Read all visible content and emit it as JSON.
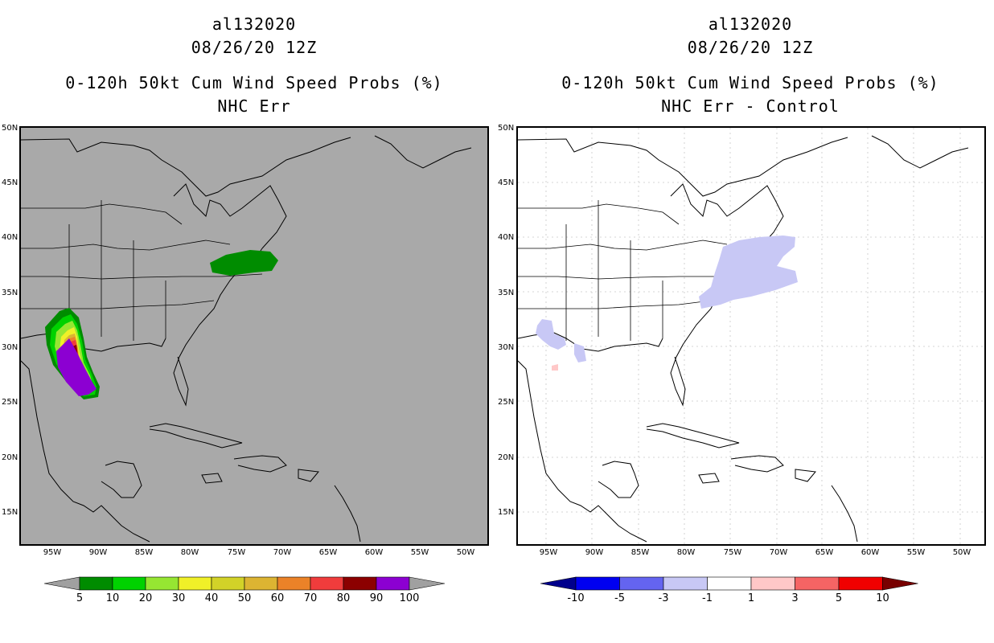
{
  "left_panel": {
    "title_line1": "al132020",
    "title_line2": "08/26/20 12Z",
    "title_line3": "0-120h 50kt Cum Wind Speed Probs (%)",
    "title_line4": "NHC Err",
    "background_color": "#a9a9a9",
    "colorbar": {
      "colors": [
        "#008c00",
        "#00d200",
        "#96e632",
        "#f0f028",
        "#d2d228",
        "#dcb432",
        "#eb8228",
        "#f03c3c",
        "#8c0000",
        "#8c00d2"
      ],
      "under_color": "#a0a0a0",
      "over_color": "#a0a0a0",
      "labels": [
        "5",
        "10",
        "20",
        "30",
        "40",
        "50",
        "60",
        "70",
        "80",
        "90",
        "100"
      ]
    }
  },
  "right_panel": {
    "title_line1": "al132020",
    "title_line2": "08/26/20 12Z",
    "title_line3": "0-120h 50kt Cum Wind Speed Probs (%)",
    "title_line4": "NHC Err - Control",
    "background_color": "#ffffff",
    "colorbar": {
      "colors": [
        "#0000f0",
        "#6464f0",
        "#c8c8f5",
        "#ffffff",
        "#ffc8c8",
        "#f56464",
        "#f00000"
      ],
      "under_color": "#00008c",
      "over_color": "#780000",
      "labels": [
        "-10",
        "-5",
        "-3",
        "-1",
        "1",
        "3",
        "5",
        "10"
      ]
    }
  },
  "lat_labels": [
    "50N",
    "45N",
    "40N",
    "35N",
    "30N",
    "25N",
    "20N",
    "15N"
  ],
  "lon_labels": [
    "95W",
    "90W",
    "85W",
    "80W",
    "75W",
    "70W",
    "65W",
    "60W",
    "55W",
    "50W"
  ]
}
